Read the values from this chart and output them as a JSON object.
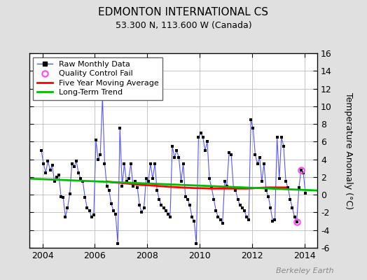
{
  "title": "EDMONTON INTERNATIONAL CS",
  "subtitle": "53.300 N, 113.600 W (Canada)",
  "ylabel": "Temperature Anomaly (°C)",
  "watermark": "Berkeley Earth",
  "xlim": [
    2003.5,
    2014.5
  ],
  "ylim": [
    -6,
    16
  ],
  "yticks": [
    -6,
    -4,
    -2,
    0,
    2,
    4,
    6,
    8,
    10,
    12,
    14,
    16
  ],
  "xticks": [
    2004,
    2006,
    2008,
    2010,
    2012,
    2014
  ],
  "background_color": "#e0e0e0",
  "plot_background": "#ffffff",
  "raw_line_color": "#5555ff",
  "raw_dot_color": "#000000",
  "ma_color": "#ff0000",
  "trend_color": "#00bb00",
  "qc_fail_color": "#ff44ff",
  "raw_data": [
    2003.958,
    5.0,
    2004.042,
    3.5,
    2004.125,
    2.5,
    2004.208,
    3.8,
    2004.292,
    2.8,
    2004.375,
    3.3,
    2004.458,
    1.5,
    2004.542,
    2.0,
    2004.625,
    2.2,
    2004.708,
    -0.2,
    2004.792,
    -0.3,
    2004.875,
    -2.5,
    2004.958,
    -1.5,
    2005.042,
    0.1,
    2005.125,
    3.5,
    2005.208,
    3.2,
    2005.292,
    3.8,
    2005.375,
    2.5,
    2005.458,
    1.8,
    2005.542,
    1.5,
    2005.625,
    -0.3,
    2005.708,
    -1.5,
    2005.792,
    -1.8,
    2005.875,
    -2.5,
    2005.958,
    -2.3,
    2006.042,
    6.2,
    2006.125,
    4.0,
    2006.208,
    4.5,
    2006.292,
    11.0,
    2006.375,
    3.5,
    2006.458,
    1.0,
    2006.542,
    0.5,
    2006.625,
    -1.0,
    2006.708,
    -1.8,
    2006.792,
    -2.2,
    2006.875,
    -5.5,
    2006.958,
    7.5,
    2007.042,
    1.0,
    2007.125,
    3.5,
    2007.208,
    1.5,
    2007.292,
    1.8,
    2007.375,
    3.5,
    2007.458,
    1.0,
    2007.542,
    1.5,
    2007.625,
    0.8,
    2007.708,
    -1.2,
    2007.792,
    -2.0,
    2007.875,
    -1.5,
    2007.958,
    1.8,
    2008.042,
    1.5,
    2008.125,
    3.5,
    2008.208,
    1.8,
    2008.292,
    3.5,
    2008.375,
    0.5,
    2008.458,
    -0.5,
    2008.542,
    -1.2,
    2008.625,
    -1.5,
    2008.708,
    -1.8,
    2008.792,
    -2.2,
    2008.875,
    -2.5,
    2008.958,
    5.5,
    2009.042,
    4.2,
    2009.125,
    5.0,
    2009.208,
    4.2,
    2009.292,
    1.5,
    2009.375,
    3.5,
    2009.458,
    -0.2,
    2009.542,
    -0.5,
    2009.625,
    -1.2,
    2009.708,
    -2.5,
    2009.792,
    -3.0,
    2009.875,
    -5.5,
    2009.958,
    6.5,
    2010.042,
    7.0,
    2010.125,
    6.5,
    2010.208,
    5.0,
    2010.292,
    6.0,
    2010.375,
    1.8,
    2010.458,
    0.8,
    2010.542,
    -0.5,
    2010.625,
    -1.8,
    2010.708,
    -2.5,
    2010.792,
    -2.8,
    2010.875,
    -3.2,
    2010.958,
    1.5,
    2011.042,
    1.0,
    2011.125,
    4.8,
    2011.208,
    4.5,
    2011.292,
    0.8,
    2011.375,
    0.5,
    2011.458,
    -0.5,
    2011.542,
    -1.2,
    2011.625,
    -1.5,
    2011.708,
    -1.8,
    2011.792,
    -2.5,
    2011.875,
    -2.8,
    2011.958,
    8.5,
    2012.042,
    7.5,
    2012.125,
    4.5,
    2012.208,
    3.5,
    2012.292,
    4.2,
    2012.375,
    1.5,
    2012.458,
    3.5,
    2012.542,
    0.5,
    2012.625,
    -0.2,
    2012.708,
    -1.5,
    2012.792,
    -3.0,
    2012.875,
    -2.8,
    2012.958,
    6.5,
    2013.042,
    1.8,
    2013.125,
    6.5,
    2013.208,
    5.5,
    2013.292,
    1.5,
    2013.375,
    0.8,
    2013.458,
    -0.5,
    2013.542,
    -1.5,
    2013.625,
    -2.5,
    2013.708,
    -3.1,
    2013.792,
    0.8,
    2013.875,
    2.8,
    2013.958,
    2.5,
    2014.042,
    0.2
  ],
  "qc_fail_points": [
    [
      2013.875,
      2.8
    ],
    [
      2013.708,
      -3.1
    ]
  ],
  "moving_avg_x": [
    2006.458,
    2006.625,
    2006.792,
    2006.958,
    2007.125,
    2007.292,
    2007.458,
    2007.625,
    2007.792,
    2007.958,
    2008.125,
    2008.292,
    2008.458,
    2008.625,
    2008.792,
    2008.958,
    2009.125,
    2009.292,
    2009.458,
    2009.625,
    2009.792,
    2009.958,
    2010.125,
    2010.292,
    2010.458,
    2010.625,
    2010.792,
    2010.958,
    2011.125,
    2011.292,
    2011.458,
    2011.625,
    2011.792,
    2011.958,
    2012.125,
    2012.292,
    2012.458,
    2012.625,
    2012.792,
    2012.958,
    2013.125,
    2013.292
  ],
  "moving_avg_y": [
    1.5,
    1.42,
    1.38,
    1.35,
    1.3,
    1.25,
    1.2,
    1.15,
    1.1,
    1.08,
    1.05,
    1.02,
    0.98,
    0.95,
    0.9,
    0.88,
    0.85,
    0.82,
    0.8,
    0.78,
    0.75,
    0.74,
    0.73,
    0.72,
    0.7,
    0.7,
    0.7,
    0.7,
    0.7,
    0.7,
    0.7,
    0.7,
    0.7,
    0.72,
    0.75,
    0.78,
    0.8,
    0.82,
    0.82,
    0.82,
    0.82,
    0.82
  ],
  "trend_x": [
    2003.5,
    2014.5
  ],
  "trend_y": [
    1.82,
    0.48
  ]
}
